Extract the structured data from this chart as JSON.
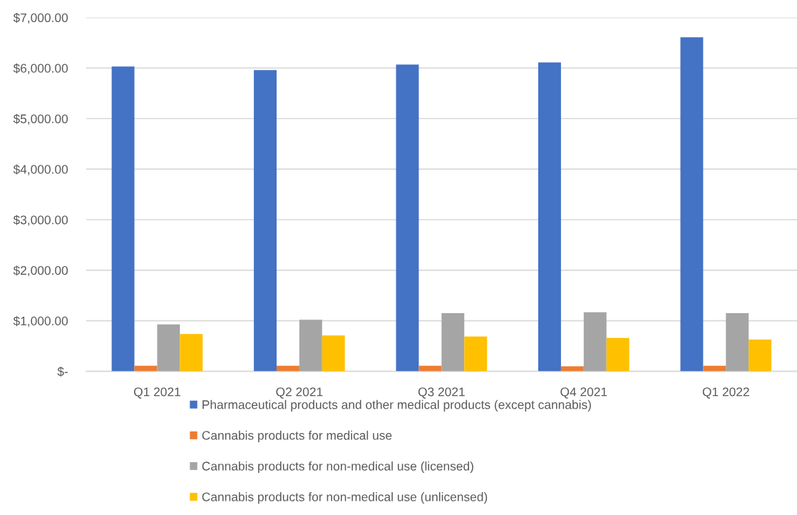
{
  "chart_data": {
    "type": "bar",
    "categories": [
      "Q1 2021",
      "Q2 2021",
      "Q3 2021",
      "Q4 2021",
      "Q1 2022"
    ],
    "series": [
      {
        "name": "Pharmaceutical products and other medical products (except cannabis)",
        "color": "#4472c4",
        "values": [
          6030,
          5960,
          6070,
          6110,
          6610
        ]
      },
      {
        "name": "Cannabis products for medical use",
        "color": "#ed7d31",
        "values": [
          110,
          110,
          110,
          100,
          110
        ]
      },
      {
        "name": "Cannabis products for non-medical use (licensed)",
        "color": "#a5a5a5",
        "values": [
          930,
          1020,
          1150,
          1170,
          1150
        ]
      },
      {
        "name": "Cannabis products for non-medical use (unlicensed)",
        "color": "#ffc000",
        "values": [
          740,
          710,
          690,
          660,
          630
        ]
      }
    ],
    "ylim": [
      0,
      7000
    ],
    "yticks": [
      {
        "value": 0,
        "label": "$-"
      },
      {
        "value": 1000,
        "label": "$1,000.00"
      },
      {
        "value": 2000,
        "label": "$2,000.00"
      },
      {
        "value": 3000,
        "label": "$3,000.00"
      },
      {
        "value": 4000,
        "label": "$4,000.00"
      },
      {
        "value": 5000,
        "label": "$5,000.00"
      },
      {
        "value": 6000,
        "label": "$6,000.00"
      },
      {
        "value": 7000,
        "label": "$7,000.00"
      }
    ],
    "grid": "y",
    "legend": "bottom"
  }
}
